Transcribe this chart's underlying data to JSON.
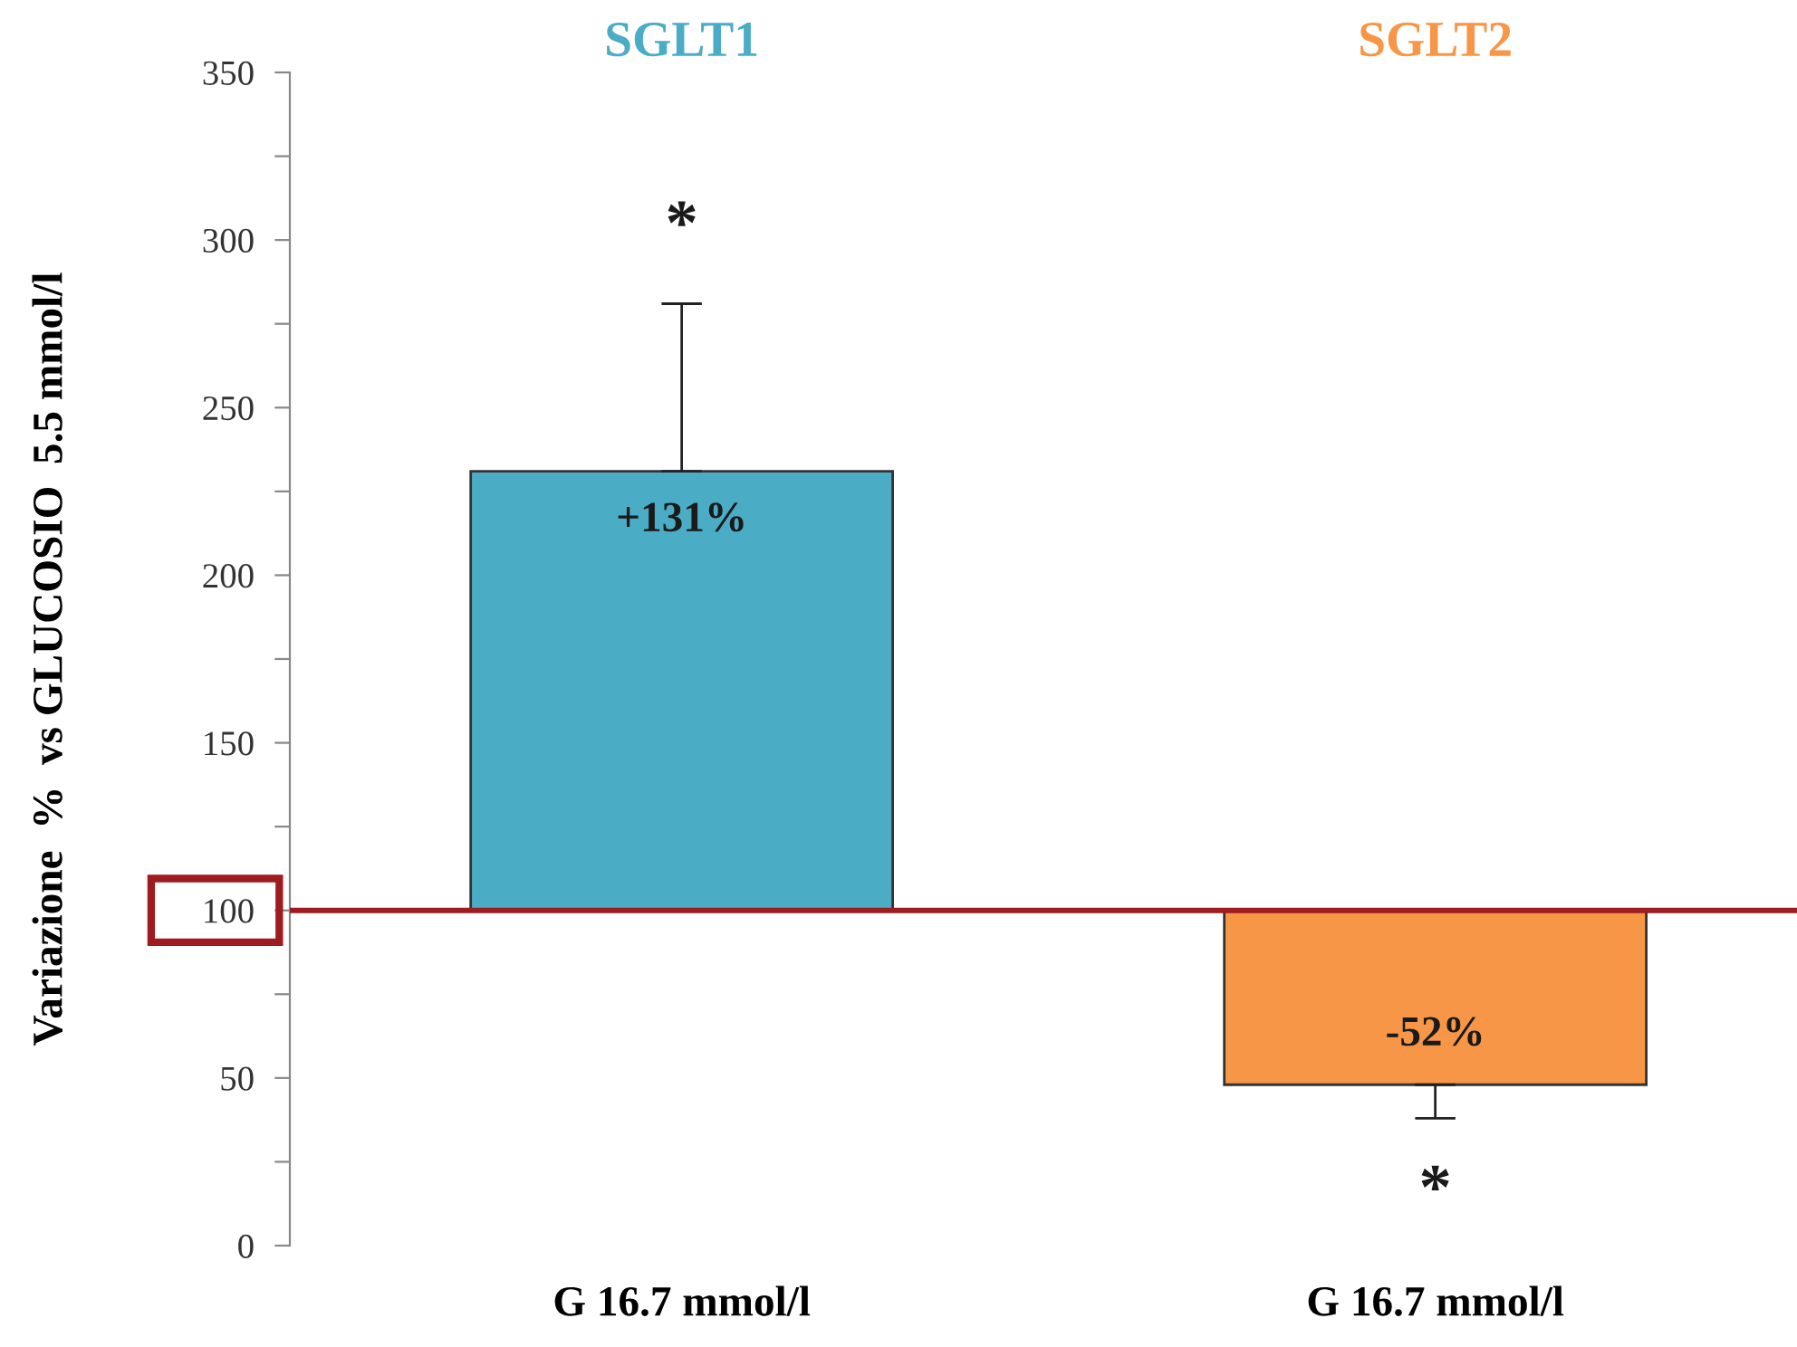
{
  "chart_data": {
    "type": "bar",
    "ylabel": "Variazione  %  vs GLUCOSIO  5.5 mmol/l",
    "categories": [
      "G 16.7 mmol/l",
      "G 16.7 mmol/l"
    ],
    "series": [
      {
        "name": "SGLT1",
        "color": "#4bacc6",
        "values": [
          131,
          null
        ],
        "base": [
          100,
          null
        ],
        "value_labels": [
          "+131%",
          null
        ],
        "errors": [
          [
            231,
            281
          ],
          null
        ]
      },
      {
        "name": "SGLT2",
        "color": "#f79646",
        "values": [
          null,
          -52
        ],
        "base": [
          null,
          100
        ],
        "value_labels": [
          null,
          "-52%"
        ],
        "errors": [
          null,
          [
            38,
            48
          ]
        ]
      }
    ],
    "ylim": [
      0,
      350
    ],
    "yticks": [
      0,
      {
        "value": 25,
        "label": null
      },
      50,
      {
        "value": 75,
        "label": null
      },
      100,
      {
        "value": 125,
        "label": null
      },
      150,
      {
        "value": 175,
        "label": null
      },
      200,
      {
        "value": 225,
        "label": null
      },
      250,
      {
        "value": 275,
        "label": null
      },
      300,
      {
        "value": 325,
        "label": null
      },
      350
    ],
    "ref_lines": [
      {
        "axis": "y",
        "value": 100,
        "color": "#9e1b1f"
      }
    ],
    "annotations": [
      "*",
      "*"
    ],
    "grid": false,
    "legend": false
  }
}
